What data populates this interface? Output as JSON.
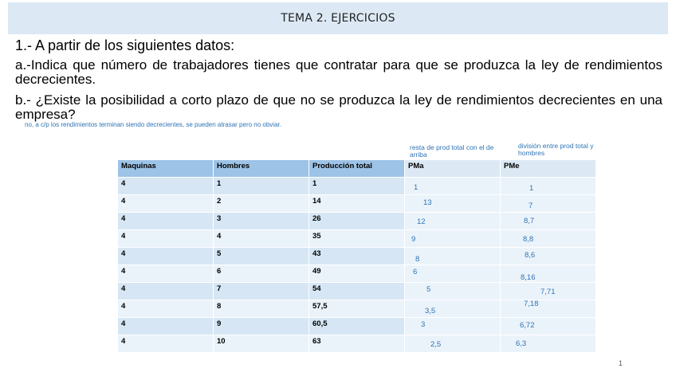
{
  "title": "TEMA 2. EJERCICIOS",
  "paragraphs": {
    "p1": "1.- A partir de los siguientes datos:",
    "p2": "a.-Indica que número de trabajadores tienes que contratar para que se produzca la ley de rendimientos decrecientes.",
    "p3": "b.- ¿Existe la posibilidad a corto plazo de que no se produzca la ley de rendimientos decrecientes en una empresa?"
  },
  "note": "no, a c/p los rendimientos terminan siendo decrecientes, se pueden atrasar pero no obviar.",
  "header_notes": {
    "pma": "resta de prod total con el de arriba",
    "pme": "división entre prod total y hombres"
  },
  "table": {
    "headers": [
      "Maquinas",
      "Hombres",
      "Producción total",
      "PMa",
      "PMe"
    ],
    "rows": [
      [
        "4",
        "1",
        "1"
      ],
      [
        "4",
        "2",
        "14"
      ],
      [
        "4",
        "3",
        "26"
      ],
      [
        "4",
        "4",
        "35"
      ],
      [
        "4",
        "5",
        "43"
      ],
      [
        "4",
        "6",
        "49"
      ],
      [
        "4",
        "7",
        "54"
      ],
      [
        "4",
        "8",
        "57,5"
      ],
      [
        "4",
        "9",
        "60,5"
      ],
      [
        "4",
        "10",
        "63"
      ]
    ]
  },
  "pma_values": [
    "1",
    "13",
    "12",
    "9",
    "8",
    "6",
    "5",
    "3,5",
    "3",
    "2,5"
  ],
  "pme_values": [
    "1",
    "7",
    "8,7",
    "8,8",
    "8,6",
    "8,16",
    "7,71",
    "7,18",
    "6,72",
    "6,3"
  ],
  "page_number": "1"
}
